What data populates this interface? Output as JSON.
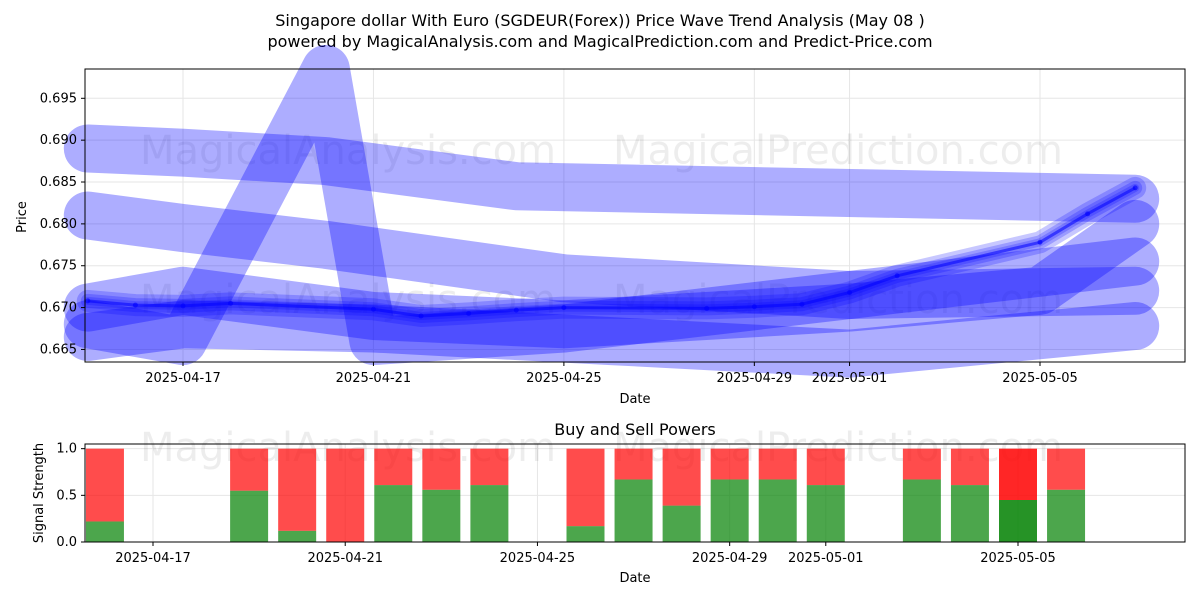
{
  "header": {
    "title": "Singapore dollar With Euro (SGDEUR(Forex)) Price Wave Trend Analysis (May 08 )",
    "subtitle": "powered by MagicalAnalysis.com and MagicalPrediction.com and Predict-Price.com"
  },
  "watermarks": [
    "MagicalAnalysis.com",
    "MagicalPrediction.com"
  ],
  "colors": {
    "wave": "#0000ff",
    "buy": "#008000",
    "sell": "#ff0000",
    "grid": "#e6e6e6"
  },
  "chart_data": [
    {
      "type": "line",
      "title": "",
      "xlabel": "Date",
      "ylabel": "Price",
      "x_ticks": [
        "2025-04-17",
        "2025-04-21",
        "2025-04-25",
        "2025-04-29",
        "2025-05-01",
        "2025-05-05"
      ],
      "y_ticks": [
        0.665,
        0.67,
        0.675,
        0.68,
        0.685,
        0.69,
        0.695
      ],
      "ylim": [
        0.6635,
        0.6985
      ],
      "grid": true,
      "price_series": {
        "name": "Price",
        "x": [
          "2025-04-15",
          "2025-04-16",
          "2025-04-17",
          "2025-04-18",
          "2025-04-21",
          "2025-04-22",
          "2025-04-23",
          "2025-04-24",
          "2025-04-25",
          "2025-04-28",
          "2025-04-29",
          "2025-04-30",
          "2025-05-01",
          "2025-05-02",
          "2025-05-05",
          "2025-05-06",
          "2025-05-07"
        ],
        "y": [
          0.6708,
          0.6703,
          0.6702,
          0.6705,
          0.6698,
          0.669,
          0.6693,
          0.6697,
          0.67,
          0.6699,
          0.6701,
          0.6704,
          0.6718,
          0.6738,
          0.6778,
          0.6812,
          0.6843
        ]
      },
      "wave_series": [
        {
          "x": [
            "2025-04-15",
            "2025-04-17",
            "2025-04-20",
            "2025-04-24",
            "2025-05-07"
          ],
          "y": [
            0.689,
            0.6885,
            0.6875,
            0.6845,
            0.683
          ]
        },
        {
          "x": [
            "2025-04-15",
            "2025-04-17",
            "2025-04-20",
            "2025-04-25",
            "2025-05-01",
            "2025-05-07"
          ],
          "y": [
            0.681,
            0.6795,
            0.6775,
            0.6735,
            0.6715,
            0.672
          ]
        },
        {
          "x": [
            "2025-04-15",
            "2025-04-17",
            "2025-04-21",
            "2025-04-26",
            "2025-05-01",
            "2025-05-07"
          ],
          "y": [
            0.6665,
            0.668,
            0.6675,
            0.666,
            0.6645,
            0.6678
          ]
        },
        {
          "x": [
            "2025-04-15",
            "2025-04-17",
            "2025-04-20",
            "2025-04-21",
            "2025-04-25",
            "2025-05-01",
            "2025-05-07"
          ],
          "y": [
            0.668,
            0.666,
            0.6985,
            0.666,
            0.6675,
            0.6715,
            0.6755
          ]
        },
        {
          "x": [
            "2025-04-15",
            "2025-04-17",
            "2025-04-21",
            "2025-04-25",
            "2025-05-01",
            "2025-05-05",
            "2025-05-07"
          ],
          "y": [
            0.67,
            0.672,
            0.669,
            0.668,
            0.67,
            0.672,
            0.68
          ]
        }
      ]
    },
    {
      "type": "bar",
      "title": "Buy and Sell Powers",
      "xlabel": "Date",
      "ylabel": "Signal Strength",
      "x_ticks": [
        "2025-04-17",
        "2025-04-21",
        "2025-04-25",
        "2025-04-29",
        "2025-05-01",
        "2025-05-05"
      ],
      "y_ticks": [
        0.0,
        0.5,
        1.0
      ],
      "ylim": [
        0,
        1.05
      ],
      "categories": [
        "2025-04-16",
        "2025-04-19",
        "2025-04-20",
        "2025-04-21",
        "2025-04-22",
        "2025-04-23",
        "2025-04-24",
        "2025-04-26",
        "2025-04-27",
        "2025-04-28",
        "2025-04-29",
        "2025-04-30",
        "2025-05-01",
        "2025-05-03",
        "2025-05-04",
        "2025-05-05",
        "2025-05-06"
      ],
      "series": [
        {
          "name": "Buy",
          "values": [
            0.22,
            0.55,
            0.12,
            0.0,
            0.61,
            0.56,
            0.61,
            0.17,
            0.67,
            0.39,
            0.67,
            0.67,
            0.61,
            0.67,
            0.61,
            0.45,
            0.56
          ]
        },
        {
          "name": "Sell",
          "values": [
            0.78,
            0.45,
            0.88,
            1.0,
            0.39,
            0.44,
            0.39,
            0.83,
            0.33,
            0.61,
            0.33,
            0.33,
            0.39,
            0.33,
            0.39,
            0.55,
            0.44
          ]
        }
      ]
    }
  ]
}
